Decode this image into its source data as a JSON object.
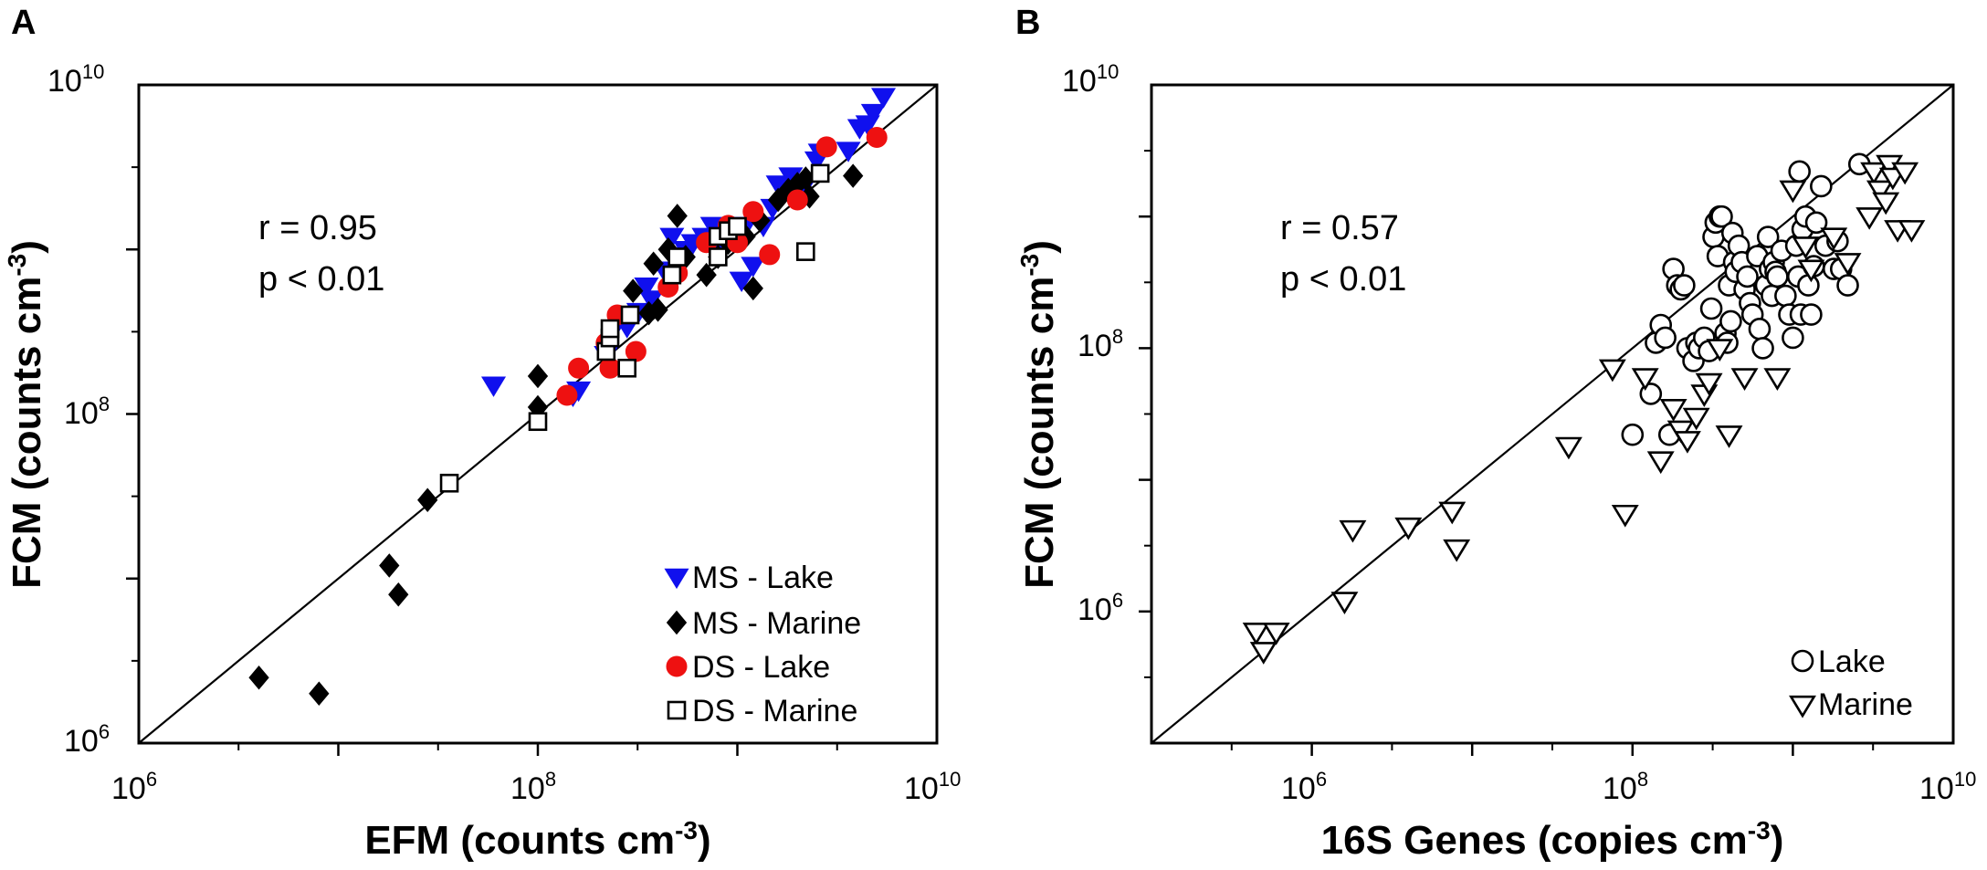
{
  "chart_data": [
    {
      "panel": "A",
      "type": "scatter",
      "xscale": "log",
      "yscale": "log",
      "xlim": [
        1000000,
        10000000000
      ],
      "ylim": [
        1000000,
        10000000000
      ],
      "x_ticks": [
        {
          "value": 1000000,
          "base": "10",
          "exp": "6"
        },
        {
          "value": 100000000,
          "base": "10",
          "exp": "8"
        },
        {
          "value": 10000000000,
          "base": "10",
          "exp": "10"
        }
      ],
      "y_ticks": [
        {
          "value": 1000000,
          "base": "10",
          "exp": "6"
        },
        {
          "value": 100000000,
          "base": "10",
          "exp": "8"
        },
        {
          "value": 10000000000,
          "base": "10",
          "exp": "10"
        }
      ],
      "xlabel": {
        "main": "EFM (counts cm",
        "sup": "-3",
        "tail": ")"
      },
      "ylabel": {
        "main": "FCM (counts cm",
        "sup": "-3",
        "tail": ")"
      },
      "stats": [
        "r = 0.95",
        "p < 0.01"
      ],
      "reference_line": "1:1",
      "legend_position": "bottom-right",
      "series": [
        {
          "name": "MS - Lake",
          "marker": "triangle-down",
          "color": "#1010ee",
          "filled": true,
          "points": [
            [
              60000000,
              150000000
            ],
            [
              150000000,
              130000000
            ],
            [
              160000000,
              140000000
            ],
            [
              220000000,
              230000000
            ],
            [
              240000000,
              330000000
            ],
            [
              280000000,
              340000000
            ],
            [
              320000000,
              420000000
            ],
            [
              350000000,
              600000000
            ],
            [
              370000000,
              500000000
            ],
            [
              430000000,
              750000000
            ],
            [
              470000000,
              1200000000
            ],
            [
              500000000,
              750000000
            ],
            [
              550000000,
              1000000000
            ],
            [
              600000000,
              1100000000
            ],
            [
              680000000,
              1200000000
            ],
            [
              750000000,
              1400000000
            ],
            [
              800000000,
              1100000000
            ],
            [
              950000000,
              1300000000
            ],
            [
              1000000000,
              1300000000
            ],
            [
              1050000000,
              650000000
            ],
            [
              1100000000,
              1400000000
            ],
            [
              1200000000,
              800000000
            ],
            [
              1350000000,
              1400000000
            ],
            [
              1500000000,
              1800000000
            ],
            [
              1600000000,
              2500000000
            ],
            [
              1700000000,
              2300000000
            ],
            [
              1850000000,
              2800000000
            ],
            [
              2100000000,
              2300000000
            ],
            [
              2500000000,
              3500000000
            ],
            [
              2600000000,
              3900000000
            ],
            [
              3600000000,
              4000000000
            ],
            [
              4100000000,
              5500000000
            ],
            [
              4500000000,
              5800000000
            ],
            [
              4800000000,
              6800000000
            ],
            [
              5400000000,
              8500000000
            ]
          ]
        },
        {
          "name": "MS - Marine",
          "marker": "diamond",
          "color": "#000000",
          "filled": true,
          "points": [
            [
              4000000,
              2500000
            ],
            [
              8000000,
              2000000
            ],
            [
              18000000,
              12000000
            ],
            [
              20000000,
              8000000
            ],
            [
              28000000,
              30000000
            ],
            [
              100000000,
              110000000
            ],
            [
              100000000,
              170000000
            ],
            [
              300000000,
              560000000
            ],
            [
              360000000,
              410000000
            ],
            [
              380000000,
              820000000
            ],
            [
              400000000,
              430000000
            ],
            [
              450000000,
              1000000000
            ],
            [
              480000000,
              700000000
            ],
            [
              500000000,
              1600000000
            ],
            [
              550000000,
              900000000
            ],
            [
              700000000,
              700000000
            ],
            [
              800000000,
              900000000
            ],
            [
              900000000,
              1100000000
            ],
            [
              1100000000,
              1200000000
            ],
            [
              1200000000,
              580000000
            ],
            [
              1300000000,
              1500000000
            ],
            [
              1600000000,
              2000000000
            ],
            [
              1800000000,
              2300000000
            ],
            [
              2000000000,
              2500000000
            ],
            [
              2200000000,
              2700000000
            ],
            [
              2300000000,
              2100000000
            ],
            [
              3800000000,
              2800000000
            ]
          ]
        },
        {
          "name": "DS - Lake",
          "marker": "circle",
          "color": "#ee1111",
          "filled": true,
          "points": [
            [
              140000000,
              130000000
            ],
            [
              160000000,
              190000000
            ],
            [
              220000000,
              270000000
            ],
            [
              230000000,
              190000000
            ],
            [
              250000000,
              400000000
            ],
            [
              310000000,
              240000000
            ],
            [
              450000000,
              590000000
            ],
            [
              500000000,
              720000000
            ],
            [
              700000000,
              1100000000
            ],
            [
              900000000,
              1400000000
            ],
            [
              1000000000,
              1100000000
            ],
            [
              1200000000,
              1700000000
            ],
            [
              1450000000,
              930000000
            ],
            [
              2000000000,
              2000000000
            ],
            [
              2800000000,
              4200000000
            ],
            [
              5000000000,
              4800000000
            ]
          ]
        },
        {
          "name": "DS - Marine",
          "marker": "square",
          "color": "#000000",
          "filled": false,
          "points": [
            [
              36000000,
              38000000
            ],
            [
              100000000,
              90000000
            ],
            [
              220000000,
              240000000
            ],
            [
              230000000,
              290000000
            ],
            [
              230000000,
              330000000
            ],
            [
              280000000,
              190000000
            ],
            [
              290000000,
              400000000
            ],
            [
              470000000,
              700000000
            ],
            [
              500000000,
              900000000
            ],
            [
              800000000,
              900000000
            ],
            [
              800000000,
              1200000000
            ],
            [
              900000000,
              1300000000
            ],
            [
              1000000000,
              1380000000
            ],
            [
              2200000000,
              970000000
            ],
            [
              2600000000,
              2900000000
            ]
          ]
        }
      ]
    },
    {
      "panel": "B",
      "type": "scatter",
      "xscale": "log",
      "yscale": "log",
      "xlim": [
        100000,
        10000000000
      ],
      "ylim": [
        100000,
        10000000000
      ],
      "x_ticks": [
        {
          "value": 1000000,
          "base": "10",
          "exp": "6"
        },
        {
          "value": 100000000,
          "base": "10",
          "exp": "8"
        },
        {
          "value": 10000000000,
          "base": "10",
          "exp": "10"
        }
      ],
      "y_ticks": [
        {
          "value": 1000000,
          "base": "10",
          "exp": "6"
        },
        {
          "value": 100000000,
          "base": "10",
          "exp": "8"
        },
        {
          "value": 10000000000,
          "base": "10",
          "exp": "10"
        }
      ],
      "xlabel": {
        "main": "16S Genes (copies cm",
        "sup": "-3",
        "tail": ")"
      },
      "ylabel": {
        "main": "FCM (counts cm",
        "sup": "-3",
        "tail": ")"
      },
      "stats": [
        "r = 0.57",
        "p < 0.01"
      ],
      "reference_line": "1:1",
      "legend_position": "bottom-right",
      "series": [
        {
          "name": "Lake",
          "marker": "circle",
          "color": "#000000",
          "filled": false,
          "points": [
            [
              100000000,
              22000000
            ],
            [
              130000000,
              45000000
            ],
            [
              140000000,
              110000000
            ],
            [
              150000000,
              150000000
            ],
            [
              160000000,
              120000000
            ],
            [
              170000000,
              22000000
            ],
            [
              180000000,
              400000000
            ],
            [
              190000000,
              300000000
            ],
            [
              200000000,
              280000000
            ],
            [
              210000000,
              300000000
            ],
            [
              220000000,
              100000000
            ],
            [
              240000000,
              80000000
            ],
            [
              250000000,
              110000000
            ],
            [
              260000000,
              100000000
            ],
            [
              280000000,
              120000000
            ],
            [
              300000000,
              95000000
            ],
            [
              310000000,
              200000000
            ],
            [
              320000000,
              700000000
            ],
            [
              330000000,
              900000000
            ],
            [
              340000000,
              500000000
            ],
            [
              350000000,
              1000000000
            ],
            [
              360000000,
              1000000000
            ],
            [
              380000000,
              130000000
            ],
            [
              390000000,
              110000000
            ],
            [
              400000000,
              300000000
            ],
            [
              410000000,
              160000000
            ],
            [
              420000000,
              750000000
            ],
            [
              430000000,
              450000000
            ],
            [
              440000000,
              380000000
            ],
            [
              460000000,
              600000000
            ],
            [
              480000000,
              450000000
            ],
            [
              500000000,
              280000000
            ],
            [
              520000000,
              350000000
            ],
            [
              540000000,
              220000000
            ],
            [
              560000000,
              180000000
            ],
            [
              600000000,
              500000000
            ],
            [
              620000000,
              140000000
            ],
            [
              650000000,
              100000000
            ],
            [
              680000000,
              300000000
            ],
            [
              700000000,
              700000000
            ],
            [
              720000000,
              400000000
            ],
            [
              740000000,
              250000000
            ],
            [
              760000000,
              450000000
            ],
            [
              780000000,
              380000000
            ],
            [
              800000000,
              350000000
            ],
            [
              850000000,
              550000000
            ],
            [
              900000000,
              250000000
            ],
            [
              950000000,
              180000000
            ],
            [
              1000000000,
              120000000
            ],
            [
              1050000000,
              600000000
            ],
            [
              1080000000,
              350000000
            ],
            [
              1100000000,
              2200000000
            ],
            [
              1120000000,
              180000000
            ],
            [
              1150000000,
              800000000
            ],
            [
              1200000000,
              1000000000
            ],
            [
              1250000000,
              300000000
            ],
            [
              1300000000,
              180000000
            ],
            [
              1350000000,
              420000000
            ],
            [
              1400000000,
              900000000
            ],
            [
              1500000000,
              1700000000
            ],
            [
              1600000000,
              600000000
            ],
            [
              1800000000,
              400000000
            ],
            [
              1900000000,
              650000000
            ],
            [
              2000000000,
              400000000
            ],
            [
              2200000000,
              300000000
            ],
            [
              2600000000,
              2500000000
            ]
          ]
        },
        {
          "name": "Marine",
          "marker": "triangle-down",
          "color": "#000000",
          "filled": false,
          "points": [
            [
              450000,
              700000
            ],
            [
              500000,
              500000
            ],
            [
              600000,
              700000
            ],
            [
              1600000,
              1200000
            ],
            [
              1800000,
              4200000
            ],
            [
              4000000,
              4400000
            ],
            [
              7500000,
              5800000
            ],
            [
              8000000,
              3000000
            ],
            [
              40000000,
              18000000
            ],
            [
              75000000,
              70000000
            ],
            [
              90000000,
              5500000
            ],
            [
              120000000,
              60000000
            ],
            [
              150000000,
              14000000
            ],
            [
              180000000,
              35000000
            ],
            [
              200000000,
              24000000
            ],
            [
              220000000,
              20000000
            ],
            [
              250000000,
              30000000
            ],
            [
              280000000,
              45000000
            ],
            [
              300000000,
              55000000
            ],
            [
              350000000,
              100000000
            ],
            [
              400000000,
              22000000
            ],
            [
              500000000,
              60000000
            ],
            [
              800000000,
              60000000
            ],
            [
              1000000000,
              1600000000
            ],
            [
              1200000000,
              600000000
            ],
            [
              1300000000,
              400000000
            ],
            [
              1800000000,
              700000000
            ],
            [
              2200000000,
              450000000
            ],
            [
              3000000000,
              1000000000
            ],
            [
              3200000000,
              2200000000
            ],
            [
              3500000000,
              1600000000
            ],
            [
              3800000000,
              1300000000
            ],
            [
              4000000000,
              2500000000
            ],
            [
              4200000000,
              2000000000
            ],
            [
              4500000000,
              800000000
            ],
            [
              5000000000,
              2200000000
            ],
            [
              5500000000,
              800000000
            ]
          ]
        }
      ]
    }
  ]
}
